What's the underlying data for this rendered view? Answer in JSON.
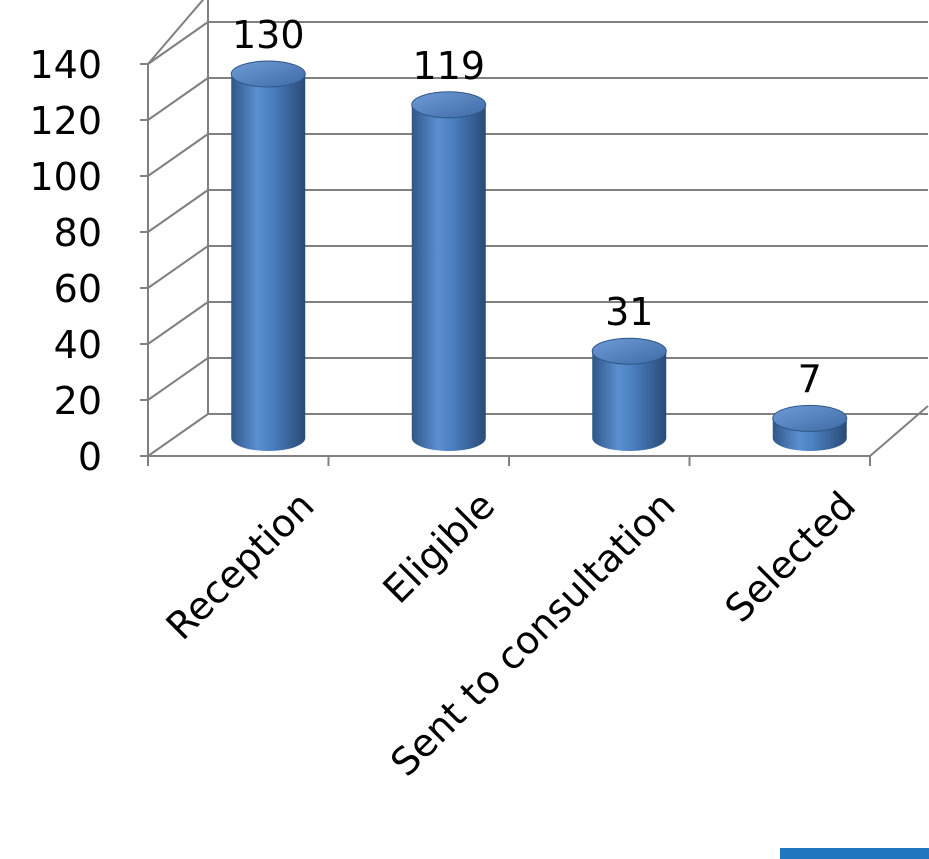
{
  "chart_data": {
    "type": "bar",
    "style": "3d-cylinder",
    "categories": [
      "Reception",
      "Eligible",
      "Sent to consultation",
      "Selected"
    ],
    "values": [
      130,
      119,
      31,
      7
    ],
    "data_labels": [
      "130",
      "119",
      "31",
      "7"
    ],
    "y_ticks": [
      "0",
      "20",
      "40",
      "60",
      "80",
      "100",
      "120",
      "140"
    ],
    "ylim": [
      0,
      140
    ],
    "grid": true,
    "legend": "none",
    "colors": {
      "bar": "#4f81bd",
      "bar_dark": "#2c4d75",
      "bar_light": "#95b3e0",
      "grid": "#808080"
    }
  },
  "decor": {
    "corner_bar_color": "#1f77c0"
  }
}
